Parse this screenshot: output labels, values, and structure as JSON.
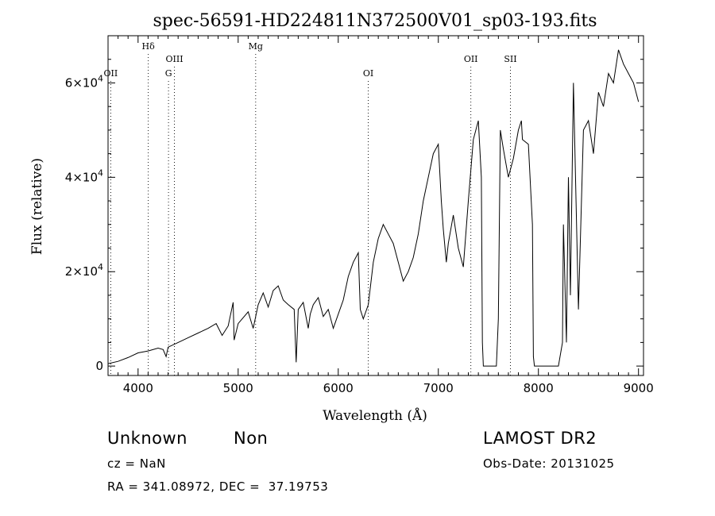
{
  "chart_data": {
    "type": "line",
    "title": "spec-56591-HD224811N372500V01_sp03-193.fits",
    "xlabel": "Wavelength (Å)",
    "ylabel": "Flux (relative)",
    "xlim": [
      3700,
      9050
    ],
    "ylim": [
      -2000,
      70000
    ],
    "x_ticks": [
      4000,
      5000,
      6000,
      7000,
      8000,
      9000
    ],
    "x_tick_labels": [
      "4000",
      "5000",
      "6000",
      "7000",
      "8000",
      "9000"
    ],
    "y_ticks": [
      0,
      20000,
      40000,
      60000
    ],
    "y_tick_labels": [
      {
        "base": "0",
        "exp": ""
      },
      {
        "base": "2×10",
        "exp": "4"
      },
      {
        "base": "4×10",
        "exp": "4"
      },
      {
        "base": "6×10",
        "exp": "4"
      }
    ],
    "grid": false,
    "lines": [
      {
        "label": "OII",
        "x": 3727,
        "row": "low"
      },
      {
        "label": "Hδ",
        "x": 4102,
        "row": "top"
      },
      {
        "label": "G",
        "x": 4304,
        "row": "low"
      },
      {
        "label": "OIII",
        "x": 4363,
        "row": "mid"
      },
      {
        "label": "Mg",
        "x": 5175,
        "row": "top"
      },
      {
        "label": "OI",
        "x": 6300,
        "row": "low"
      },
      {
        "label": "OII",
        "x": 7325,
        "row": "mid"
      },
      {
        "label": "SII",
        "x": 7720,
        "row": "mid"
      }
    ],
    "series": [
      {
        "x": [
          3700,
          3800,
          3900,
          4000,
          4100,
          4200,
          4250,
          4280,
          4300,
          4400,
          4500,
          4600,
          4700,
          4780,
          4840,
          4900,
          4950,
          4960,
          5000,
          5100,
          5150,
          5200,
          5250,
          5300,
          5350,
          5400,
          5450,
          5500,
          5560,
          5580,
          5600,
          5650,
          5700,
          5720,
          5750,
          5800,
          5850,
          5900,
          5950,
          6000,
          6050,
          6100,
          6150,
          6200,
          6220,
          6250,
          6300,
          6350,
          6400,
          6450,
          6500,
          6550,
          6600,
          6650,
          6700,
          6750,
          6800,
          6850,
          6900,
          6950,
          7000,
          7030,
          7050,
          7080,
          7100,
          7150,
          7200,
          7250,
          7300,
          7350,
          7400,
          7430,
          7440,
          7450,
          7500,
          7550,
          7580,
          7600,
          7620,
          7650,
          7700,
          7750,
          7800,
          7830,
          7840,
          7900,
          7940,
          7950,
          7960,
          8000,
          8100,
          8150,
          8200,
          8240,
          8250,
          8280,
          8300,
          8320,
          8350,
          8400,
          8450,
          8500,
          8550,
          8600,
          8650,
          8700,
          8750,
          8800,
          8850,
          8900,
          8950,
          9000
        ],
        "y": [
          500,
          1000,
          1800,
          2800,
          3200,
          3800,
          3500,
          2000,
          4000,
          5000,
          6000,
          7000,
          8000,
          9000,
          6500,
          8500,
          13500,
          5500,
          9000,
          11500,
          8000,
          13000,
          15500,
          12500,
          16000,
          17000,
          14000,
          13000,
          12000,
          800,
          12000,
          13500,
          8000,
          11000,
          13000,
          14500,
          10500,
          12000,
          8000,
          11000,
          14000,
          19000,
          22000,
          24000,
          12000,
          10000,
          13000,
          22000,
          27000,
          30000,
          28000,
          26000,
          22000,
          18000,
          20000,
          23000,
          28000,
          35000,
          40000,
          45000,
          47000,
          35000,
          29000,
          22000,
          26000,
          32000,
          25000,
          21000,
          35000,
          48000,
          52000,
          40000,
          5000,
          0,
          0,
          0,
          0,
          10000,
          50000,
          46000,
          40000,
          44000,
          50000,
          52000,
          48000,
          47000,
          30000,
          2000,
          0,
          0,
          0,
          0,
          0,
          5000,
          30000,
          5000,
          40000,
          15000,
          60000,
          12000,
          50000,
          52000,
          45000,
          58000,
          55000,
          62000,
          60000,
          67000,
          64000,
          62000,
          60000,
          56000
        ]
      }
    ]
  },
  "annotations": {
    "object_class": "Unknown",
    "subclass": "Non",
    "survey": "LAMOST DR2",
    "redshift": "cz = NaN",
    "obs_date": "Obs-Date: 20131025",
    "coords": "RA = 341.08972, DEC =  37.19753"
  }
}
